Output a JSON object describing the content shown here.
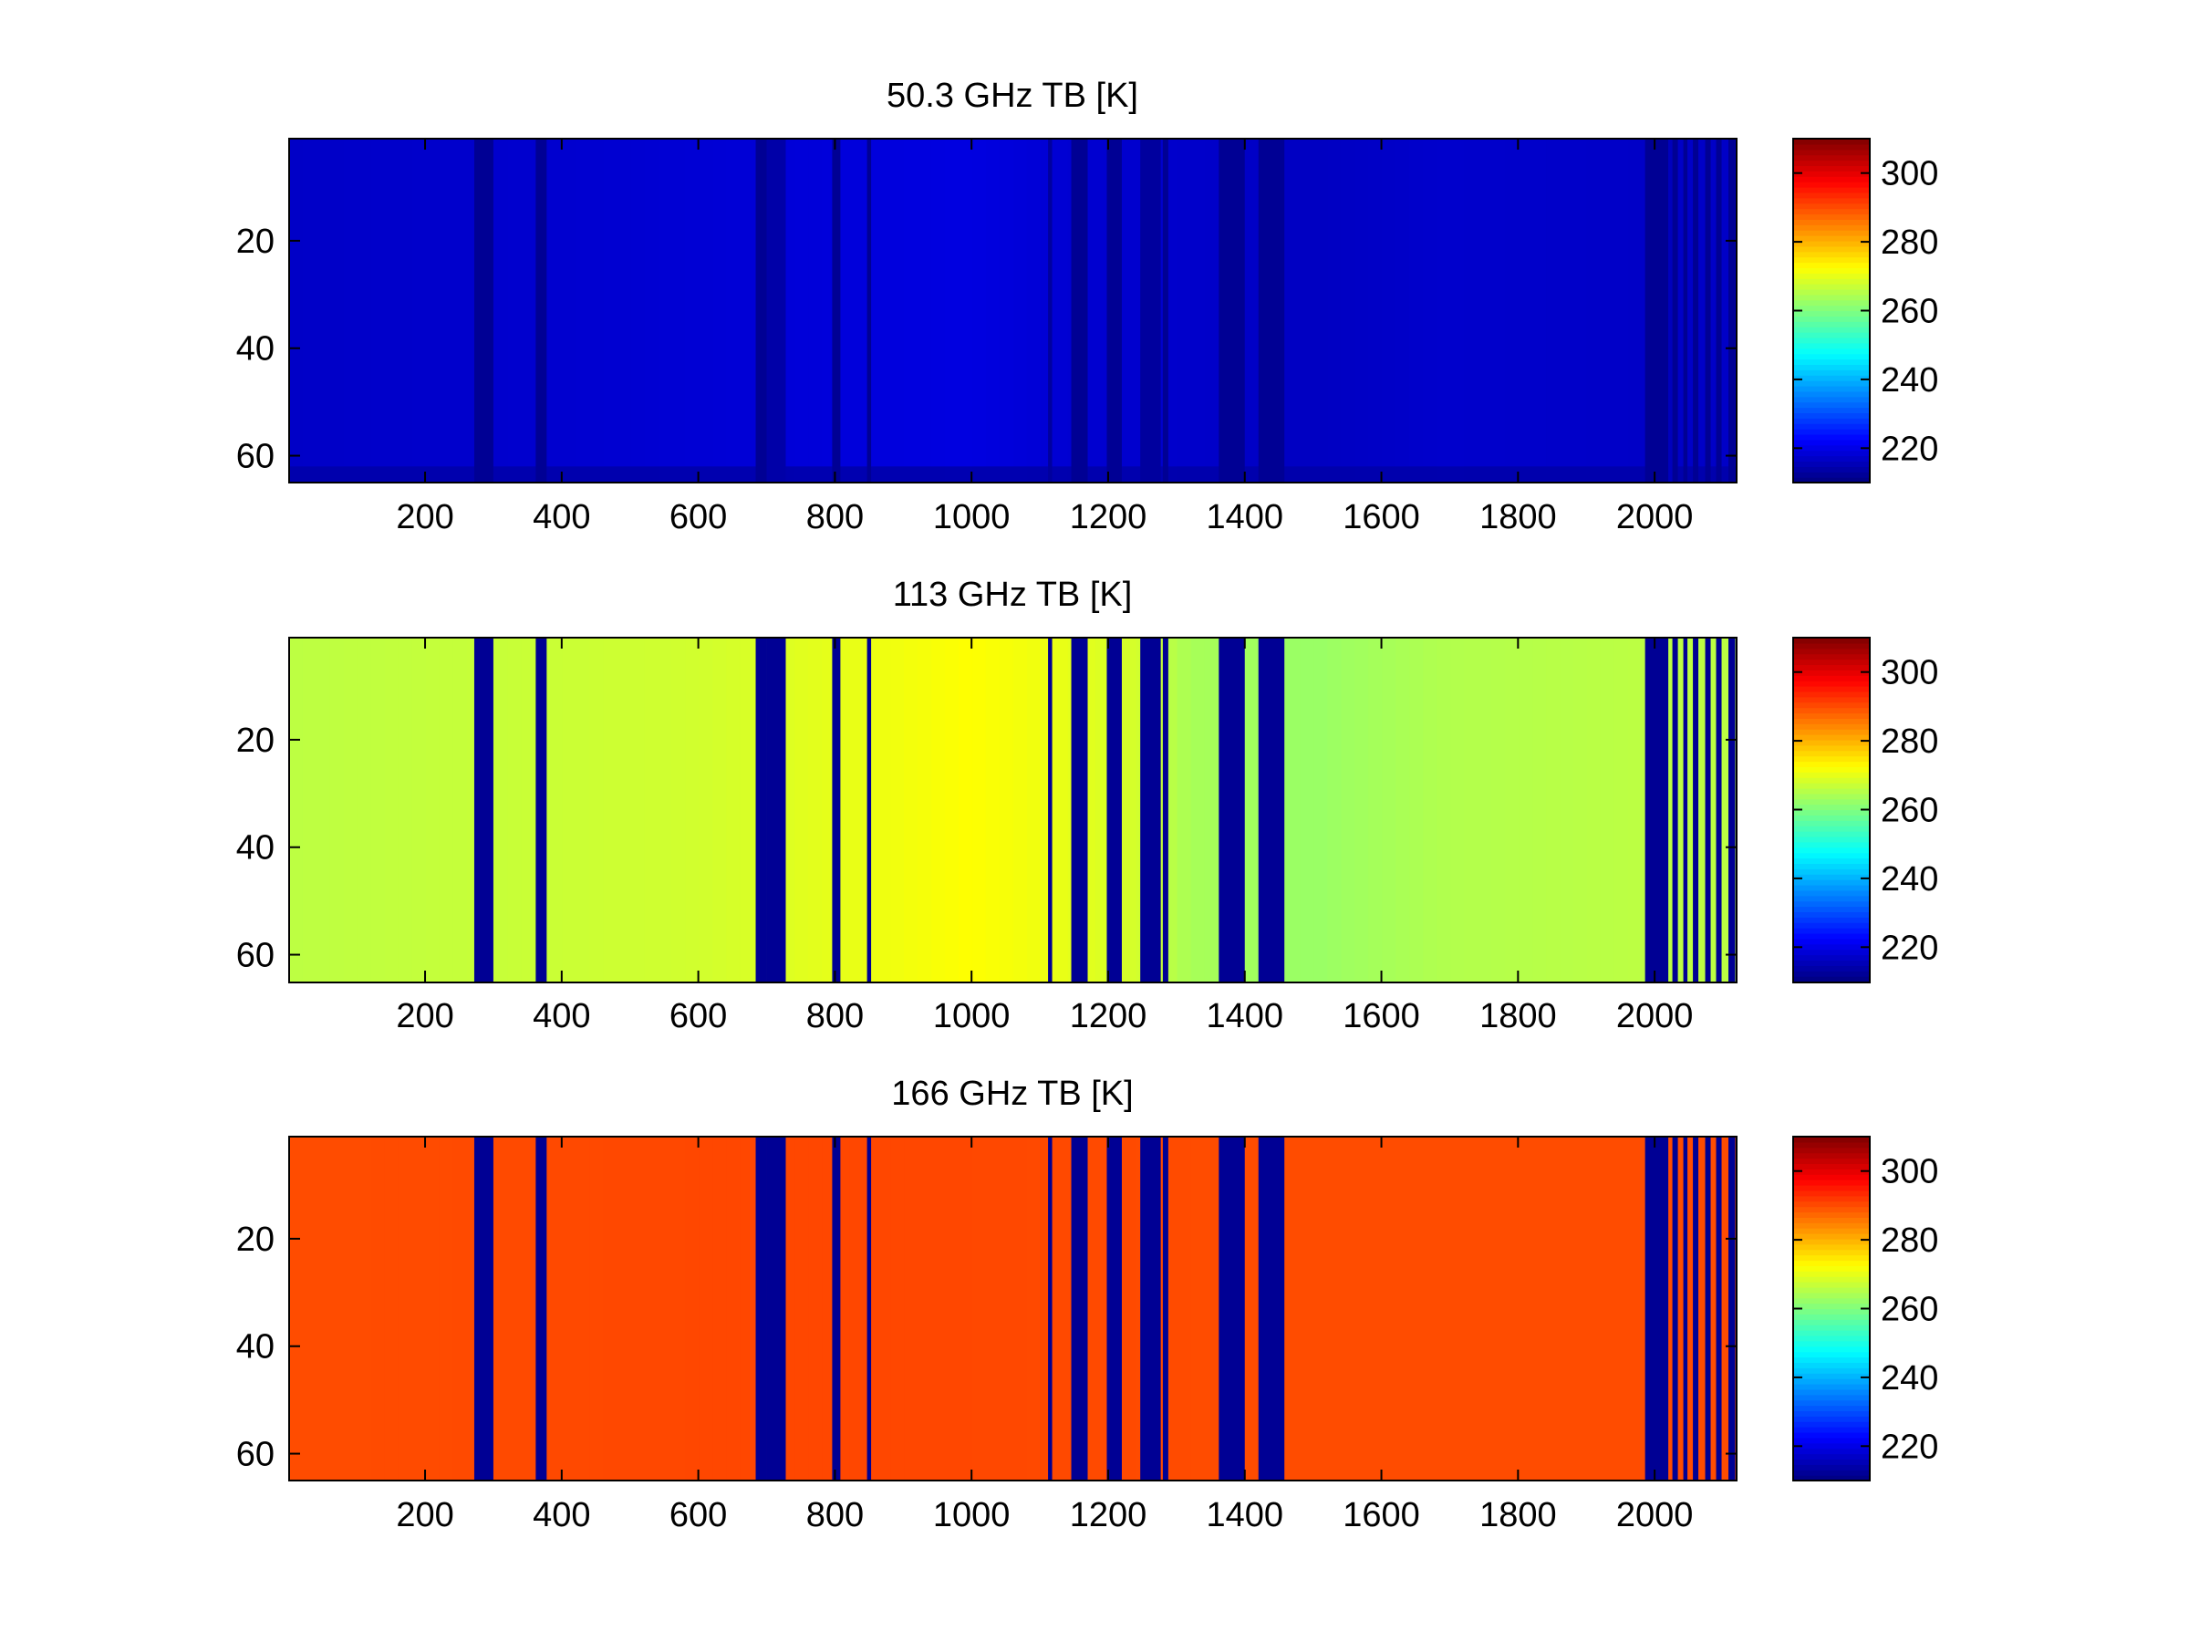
{
  "chart_data": [
    {
      "type": "heatmap",
      "title": "50.3 GHz TB [K]",
      "xlabel": "",
      "ylabel": "",
      "xlim": [
        1,
        2120
      ],
      "ylim": [
        1,
        65
      ],
      "y_reversed": true,
      "xticks": [
        200,
        400,
        600,
        800,
        1000,
        1200,
        1400,
        1600,
        1800,
        2000
      ],
      "yticks": [
        20,
        40,
        60
      ],
      "colorbar": {
        "colormap": "jet",
        "range": [
          210,
          310
        ],
        "ticks": [
          220,
          240,
          260,
          280,
          300
        ]
      },
      "base_profile": [
        [
          1,
          217
        ],
        [
          500,
          218
        ],
        [
          1000,
          219.5
        ],
        [
          1150,
          218
        ],
        [
          1300,
          217.5
        ],
        [
          1500,
          216.5
        ],
        [
          1700,
          217.5
        ],
        [
          2000,
          217
        ],
        [
          2120,
          217
        ]
      ],
      "bottom_band": {
        "y_from": 62,
        "tb": 214
      },
      "low_value_bands": [
        [
          272,
          300,
          212
        ],
        [
          362,
          378,
          212
        ],
        [
          684,
          700,
          212
        ],
        [
          700,
          728,
          214
        ],
        [
          796,
          808,
          212
        ],
        [
          847,
          853,
          212
        ],
        [
          1112,
          1118,
          213
        ],
        [
          1146,
          1170,
          212
        ],
        [
          1198,
          1220,
          212
        ],
        [
          1247,
          1277,
          213
        ],
        [
          1280,
          1288,
          212
        ],
        [
          1362,
          1400,
          212
        ],
        [
          1420,
          1458,
          212
        ],
        [
          1986,
          2020,
          212
        ],
        [
          2020,
          2026,
          216
        ],
        [
          2026,
          2034,
          212
        ],
        [
          2042,
          2048,
          212
        ],
        [
          2056,
          2064,
          212
        ],
        [
          2074,
          2082,
          212
        ],
        [
          2090,
          2098,
          212
        ],
        [
          2108,
          2118,
          212
        ]
      ],
      "grid": false
    },
    {
      "type": "heatmap",
      "title": "113 GHz TB [K]",
      "xlabel": "",
      "ylabel": "",
      "xlim": [
        1,
        2120
      ],
      "ylim": [
        1,
        65
      ],
      "y_reversed": true,
      "xticks": [
        200,
        400,
        600,
        800,
        1000,
        1200,
        1400,
        1600,
        1800,
        2000
      ],
      "yticks": [
        20,
        40,
        60
      ],
      "colorbar": {
        "colormap": "jet",
        "range": [
          210,
          310
        ],
        "ticks": [
          220,
          240,
          260,
          280,
          300
        ]
      },
      "base_profile": [
        [
          1,
          266
        ],
        [
          300,
          267
        ],
        [
          600,
          268
        ],
        [
          800,
          270
        ],
        [
          1000,
          272.5
        ],
        [
          1100,
          271
        ],
        [
          1250,
          268
        ],
        [
          1320,
          264
        ],
        [
          1500,
          262.5
        ],
        [
          1700,
          265
        ],
        [
          2000,
          266
        ],
        [
          2120,
          266
        ]
      ],
      "low_value_bands": [
        [
          272,
          300,
          212
        ],
        [
          362,
          378,
          212
        ],
        [
          684,
          700,
          212
        ],
        [
          700,
          728,
          212
        ],
        [
          796,
          808,
          212
        ],
        [
          847,
          853,
          212
        ],
        [
          1112,
          1118,
          212
        ],
        [
          1146,
          1170,
          212
        ],
        [
          1198,
          1220,
          212
        ],
        [
          1247,
          1277,
          212
        ],
        [
          1280,
          1288,
          212
        ],
        [
          1362,
          1400,
          212
        ],
        [
          1420,
          1458,
          212
        ],
        [
          1986,
          2020,
          212
        ],
        [
          2026,
          2034,
          212
        ],
        [
          2042,
          2048,
          212
        ],
        [
          2056,
          2064,
          212
        ],
        [
          2074,
          2082,
          212
        ],
        [
          2090,
          2098,
          212
        ],
        [
          2108,
          2118,
          212
        ]
      ],
      "grid": false
    },
    {
      "type": "heatmap",
      "title": "166 GHz TB [K]",
      "xlabel": "",
      "ylabel": "",
      "xlim": [
        1,
        2120
      ],
      "ylim": [
        1,
        65
      ],
      "y_reversed": true,
      "xticks": [
        200,
        400,
        600,
        800,
        1000,
        1200,
        1400,
        1600,
        1800,
        2000
      ],
      "yticks": [
        20,
        40,
        60
      ],
      "colorbar": {
        "colormap": "jet",
        "range": [
          210,
          310
        ],
        "ticks": [
          220,
          240,
          260,
          280,
          300
        ]
      },
      "base_profile": [
        [
          1,
          290
        ],
        [
          600,
          290.5
        ],
        [
          1000,
          290.5
        ],
        [
          1400,
          290
        ],
        [
          2120,
          290
        ]
      ],
      "low_value_bands": [
        [
          272,
          300,
          212
        ],
        [
          362,
          378,
          212
        ],
        [
          684,
          700,
          212
        ],
        [
          700,
          728,
          212
        ],
        [
          796,
          808,
          212
        ],
        [
          847,
          853,
          212
        ],
        [
          1112,
          1118,
          212
        ],
        [
          1146,
          1170,
          212
        ],
        [
          1198,
          1220,
          212
        ],
        [
          1247,
          1277,
          212
        ],
        [
          1280,
          1288,
          212
        ],
        [
          1362,
          1400,
          212
        ],
        [
          1420,
          1458,
          212
        ],
        [
          1986,
          2020,
          212
        ],
        [
          2026,
          2034,
          212
        ],
        [
          2042,
          2048,
          212
        ],
        [
          2056,
          2064,
          212
        ],
        [
          2074,
          2082,
          212
        ],
        [
          2090,
          2098,
          212
        ],
        [
          2108,
          2118,
          212
        ]
      ],
      "grid": false
    }
  ]
}
